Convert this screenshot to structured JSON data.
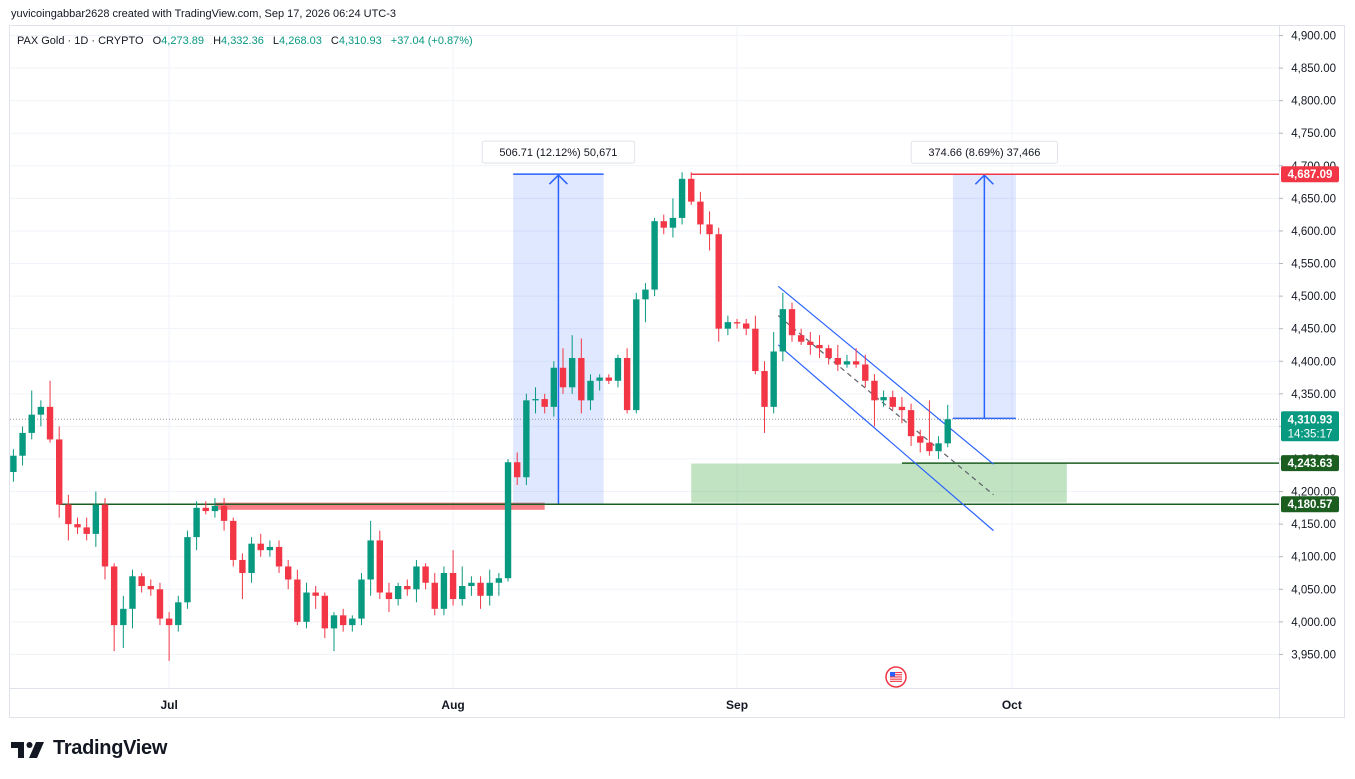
{
  "header": {
    "creator": "yuvicoingabbar2628 created with TradingView.com, Sep 17, 2026 06:24 UTC-3"
  },
  "symbol_bar": {
    "name": "PAX Gold · 1D · CRYPTO",
    "o_label": "O",
    "o_value": "4,273.89",
    "h_label": "H",
    "h_value": "4,332.36",
    "l_label": "L",
    "l_value": "4,268.03",
    "c_label": "C",
    "c_value": "4,310.93",
    "change": "+37.04 (+0.87%)"
  },
  "brand": {
    "name": "TradingView"
  },
  "colors": {
    "up": "#089981",
    "down": "#f23645",
    "blue": "#2962ff",
    "green_line": "#1b5e20"
  },
  "chart_data": {
    "type": "candlestick",
    "ylim": [
      3910,
      4925
    ],
    "y_ticks": [
      "4,900.00",
      "4,850.00",
      "4,800.00",
      "4,750.00",
      "4,700.00",
      "4,650.00",
      "4,600.00",
      "4,550.00",
      "4,500.00",
      "4,450.00",
      "4,400.00",
      "4,350.00",
      "4,300.00",
      "4,250.00",
      "4,200.00",
      "4,150.00",
      "4,100.00",
      "4,050.00",
      "4,000.00",
      "3,950.00"
    ],
    "x_ticks": [
      {
        "label": "Jul",
        "index": 17
      },
      {
        "label": "Aug",
        "index": 48
      },
      {
        "label": "Sep",
        "index": 79
      },
      {
        "label": "Oct",
        "index": 109
      }
    ],
    "candles": [
      [
        4230,
        4265,
        4215,
        4255
      ],
      [
        4255,
        4300,
        4240,
        4290
      ],
      [
        4290,
        4355,
        4280,
        4318
      ],
      [
        4318,
        4340,
        4300,
        4330
      ],
      [
        4330,
        4370,
        4275,
        4280
      ],
      [
        4280,
        4300,
        4160,
        4180
      ],
      [
        4180,
        4195,
        4125,
        4150
      ],
      [
        4150,
        4160,
        4135,
        4145
      ],
      [
        4145,
        4160,
        4125,
        4135
      ],
      [
        4135,
        4200,
        4115,
        4180
      ],
      [
        4180,
        4190,
        4065,
        4085
      ],
      [
        4085,
        4090,
        3955,
        3995
      ],
      [
        3995,
        4040,
        3960,
        4020
      ],
      [
        4020,
        4080,
        3990,
        4070
      ],
      [
        4070,
        4075,
        4045,
        4055
      ],
      [
        4055,
        4065,
        4040,
        4050
      ],
      [
        4050,
        4060,
        3995,
        4005
      ],
      [
        4005,
        4015,
        3940,
        3995
      ],
      [
        3995,
        4040,
        3985,
        4030
      ],
      [
        4030,
        4140,
        4020,
        4130
      ],
      [
        4130,
        4185,
        4110,
        4175
      ],
      [
        4175,
        4185,
        4165,
        4170
      ],
      [
        4170,
        4190,
        4160,
        4178
      ],
      [
        4178,
        4190,
        4140,
        4155
      ],
      [
        4155,
        4160,
        4085,
        4095
      ],
      [
        4095,
        4105,
        4035,
        4075
      ],
      [
        4075,
        4130,
        4060,
        4120
      ],
      [
        4120,
        4135,
        4100,
        4110
      ],
      [
        4110,
        4125,
        4100,
        4115
      ],
      [
        4115,
        4125,
        4075,
        4085
      ],
      [
        4085,
        4095,
        4050,
        4065
      ],
      [
        4065,
        4080,
        3995,
        4000
      ],
      [
        4000,
        4060,
        3990,
        4045
      ],
      [
        4045,
        4055,
        4020,
        4040
      ],
      [
        4040,
        4045,
        3975,
        3990
      ],
      [
        3990,
        4015,
        3955,
        4010
      ],
      [
        4010,
        4020,
        3985,
        3995
      ],
      [
        3995,
        4010,
        3985,
        4005
      ],
      [
        4005,
        4075,
        3995,
        4065
      ],
      [
        4065,
        4155,
        4040,
        4125
      ],
      [
        4125,
        4140,
        4035,
        4045
      ],
      [
        4045,
        4060,
        4015,
        4035
      ],
      [
        4035,
        4060,
        4025,
        4055
      ],
      [
        4055,
        4065,
        4040,
        4050
      ],
      [
        4050,
        4095,
        4030,
        4085
      ],
      [
        4085,
        4090,
        4050,
        4060
      ],
      [
        4060,
        4075,
        4010,
        4020
      ],
      [
        4020,
        4085,
        4010,
        4075
      ],
      [
        4075,
        4110,
        4025,
        4035
      ],
      [
        4035,
        4085,
        4025,
        4055
      ],
      [
        4055,
        4070,
        4040,
        4060
      ],
      [
        4060,
        4070,
        4020,
        4040
      ],
      [
        4040,
        4080,
        4025,
        4060
      ],
      [
        4060,
        4075,
        4040,
        4067
      ],
      [
        4067,
        4250,
        4062,
        4245
      ],
      [
        4245,
        4260,
        4210,
        4222
      ],
      [
        4222,
        4350,
        4210,
        4340
      ],
      [
        4340,
        4360,
        4320,
        4342
      ],
      [
        4342,
        4350,
        4320,
        4330
      ],
      [
        4330,
        4400,
        4315,
        4390
      ],
      [
        4390,
        4420,
        4350,
        4360
      ],
      [
        4360,
        4440,
        4350,
        4405
      ],
      [
        4405,
        4435,
        4320,
        4340
      ],
      [
        4340,
        4380,
        4325,
        4370
      ],
      [
        4370,
        4380,
        4355,
        4375
      ],
      [
        4375,
        4380,
        4365,
        4370
      ],
      [
        4370,
        4410,
        4360,
        4405
      ],
      [
        4405,
        4420,
        4320,
        4325
      ],
      [
        4325,
        4505,
        4320,
        4495
      ],
      [
        4495,
        4520,
        4460,
        4510
      ],
      [
        4510,
        4620,
        4500,
        4615
      ],
      [
        4615,
        4625,
        4595,
        4605
      ],
      [
        4605,
        4650,
        4590,
        4620
      ],
      [
        4620,
        4690,
        4610,
        4680
      ],
      [
        4680,
        4690,
        4640,
        4645
      ],
      [
        4645,
        4660,
        4595,
        4610
      ],
      [
        4610,
        4630,
        4570,
        4595
      ],
      [
        4595,
        4605,
        4430,
        4450
      ],
      [
        4450,
        4470,
        4440,
        4460
      ],
      [
        4460,
        4465,
        4450,
        4458
      ],
      [
        4458,
        4465,
        4440,
        4450
      ],
      [
        4450,
        4470,
        4380,
        4385
      ],
      [
        4385,
        4400,
        4290,
        4330
      ],
      [
        4330,
        4445,
        4320,
        4415
      ],
      [
        4415,
        4505,
        4400,
        4480
      ],
      [
        4480,
        4490,
        4430,
        4440
      ],
      [
        4440,
        4450,
        4425,
        4430
      ],
      [
        4430,
        4445,
        4410,
        4425
      ],
      [
        4425,
        4440,
        4405,
        4420
      ],
      [
        4420,
        4425,
        4395,
        4405
      ],
      [
        4405,
        4425,
        4385,
        4395
      ],
      [
        4395,
        4410,
        4390,
        4400
      ],
      [
        4400,
        4420,
        4390,
        4395
      ],
      [
        4395,
        4410,
        4360,
        4370
      ],
      [
        4370,
        4380,
        4300,
        4340
      ],
      [
        4340,
        4355,
        4330,
        4345
      ],
      [
        4345,
        4355,
        4325,
        4330
      ],
      [
        4330,
        4345,
        4305,
        4325
      ],
      [
        4325,
        4335,
        4270,
        4285
      ],
      [
        4285,
        4295,
        4260,
        4275
      ],
      [
        4275,
        4340,
        4255,
        4262
      ],
      [
        4262,
        4285,
        4250,
        4274
      ],
      [
        4274,
        4333,
        4268,
        4311
      ]
    ],
    "measures": [
      {
        "label": "506.71 (12.12%) 50,671",
        "from": 4180.57,
        "to": 4687.28,
        "i0": 55,
        "i1": 64
      },
      {
        "label": "374.66 (8.69%) 37,466",
        "from": 4312.4,
        "to": 4687.06,
        "i0": 103,
        "i1": 109
      }
    ],
    "levels": [
      {
        "value": 4687.09,
        "label": "4,687.09",
        "color": "#f23645",
        "i0": 74
      },
      {
        "value": 4180.57,
        "label": "4,180.57",
        "color": "#1b5e20",
        "i0": 5
      },
      {
        "value": 4243.63,
        "label": "4,243.63",
        "color": "#1b5e20",
        "i0": 97
      }
    ],
    "last_price": {
      "label": "4,310.93",
      "countdown": "14:35:17",
      "value": 4310.93
    },
    "zones": [
      {
        "type": "support",
        "y0": 4183,
        "y1": 4243,
        "i0": 74,
        "i1": 115
      },
      {
        "type": "resistance",
        "y0": 4172,
        "y1": 4183,
        "i0": 22,
        "i1": 58
      }
    ],
    "channel": [
      {
        "x0": 83.5,
        "y0": 4515,
        "x1": 107,
        "y1": 4242
      },
      {
        "x0": 83.5,
        "y0": 4470,
        "x1": 107,
        "y1": 4195
      },
      {
        "x0": 83.5,
        "y0": 4425,
        "x1": 107,
        "y1": 4140
      }
    ]
  }
}
